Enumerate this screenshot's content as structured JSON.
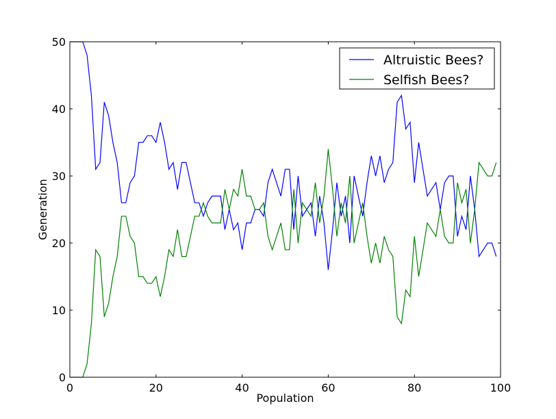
{
  "chart_data": {
    "type": "line",
    "title": "",
    "xlabel": "Population",
    "ylabel": "Generation",
    "xlim": [
      0,
      100
    ],
    "ylim": [
      0,
      50
    ],
    "xticks": [
      0,
      20,
      40,
      60,
      80,
      100
    ],
    "yticks": [
      0,
      10,
      20,
      30,
      40,
      50
    ],
    "grid": false,
    "legend_position": "top-right",
    "x": [
      0,
      1,
      2,
      3,
      4,
      5,
      6,
      7,
      8,
      9,
      10,
      11,
      12,
      13,
      14,
      15,
      16,
      17,
      18,
      19,
      20,
      21,
      22,
      23,
      24,
      25,
      26,
      27,
      28,
      29,
      30,
      31,
      32,
      33,
      34,
      35,
      36,
      37,
      38,
      39,
      40,
      41,
      42,
      43,
      44,
      45,
      46,
      47,
      48,
      49,
      50,
      51,
      52,
      53,
      54,
      55,
      56,
      57,
      58,
      59,
      60,
      61,
      62,
      63,
      64,
      65,
      66,
      67,
      68,
      69,
      70,
      71,
      72,
      73,
      74,
      75,
      76,
      77,
      78,
      79,
      80,
      81,
      82,
      83,
      84,
      85,
      86,
      87,
      88,
      89,
      90,
      91,
      92,
      93,
      94,
      95,
      96,
      97,
      98,
      99
    ],
    "series": [
      {
        "name": "Altruistic Bees?",
        "color": "#0000ff",
        "values": [
          50,
          50,
          50,
          50,
          48,
          42,
          31,
          32,
          41,
          39,
          35,
          32,
          26,
          26,
          29,
          30,
          35,
          35,
          36,
          36,
          35,
          38,
          35,
          31,
          32,
          28,
          32,
          32,
          29,
          26,
          26,
          24,
          26,
          27,
          27,
          27,
          22,
          25,
          22,
          23,
          19,
          23,
          23,
          25,
          25,
          24,
          29,
          31,
          29,
          27,
          31,
          31,
          22,
          30,
          24,
          25,
          26,
          21,
          27,
          23,
          16,
          22,
          29,
          24,
          27,
          20,
          30,
          27,
          24,
          29,
          33,
          30,
          33,
          29,
          31,
          32,
          41,
          42,
          37,
          38,
          29,
          35,
          31,
          27,
          28,
          29,
          25,
          29,
          30,
          30,
          21,
          24,
          22,
          30,
          25,
          18,
          19,
          20,
          20,
          18
        ]
      },
      {
        "name": "Selfish Bees?",
        "color": "#008000",
        "values": [
          0,
          0,
          0,
          0,
          2,
          8,
          19,
          18,
          9,
          11,
          15,
          18,
          24,
          24,
          21,
          20,
          15,
          15,
          14,
          14,
          15,
          12,
          15,
          19,
          18,
          22,
          18,
          18,
          21,
          24,
          24,
          26,
          24,
          23,
          23,
          23,
          28,
          25,
          28,
          27,
          31,
          27,
          27,
          25,
          25,
          26,
          21,
          19,
          21,
          23,
          19,
          19,
          28,
          20,
          26,
          25,
          24,
          29,
          23,
          27,
          34,
          28,
          21,
          26,
          23,
          30,
          20,
          23,
          26,
          21,
          17,
          20,
          17,
          21,
          19,
          18,
          9,
          8,
          13,
          12,
          21,
          15,
          19,
          23,
          22,
          21,
          25,
          21,
          20,
          20,
          29,
          26,
          28,
          20,
          25,
          32,
          31,
          30,
          30,
          32
        ]
      }
    ]
  }
}
